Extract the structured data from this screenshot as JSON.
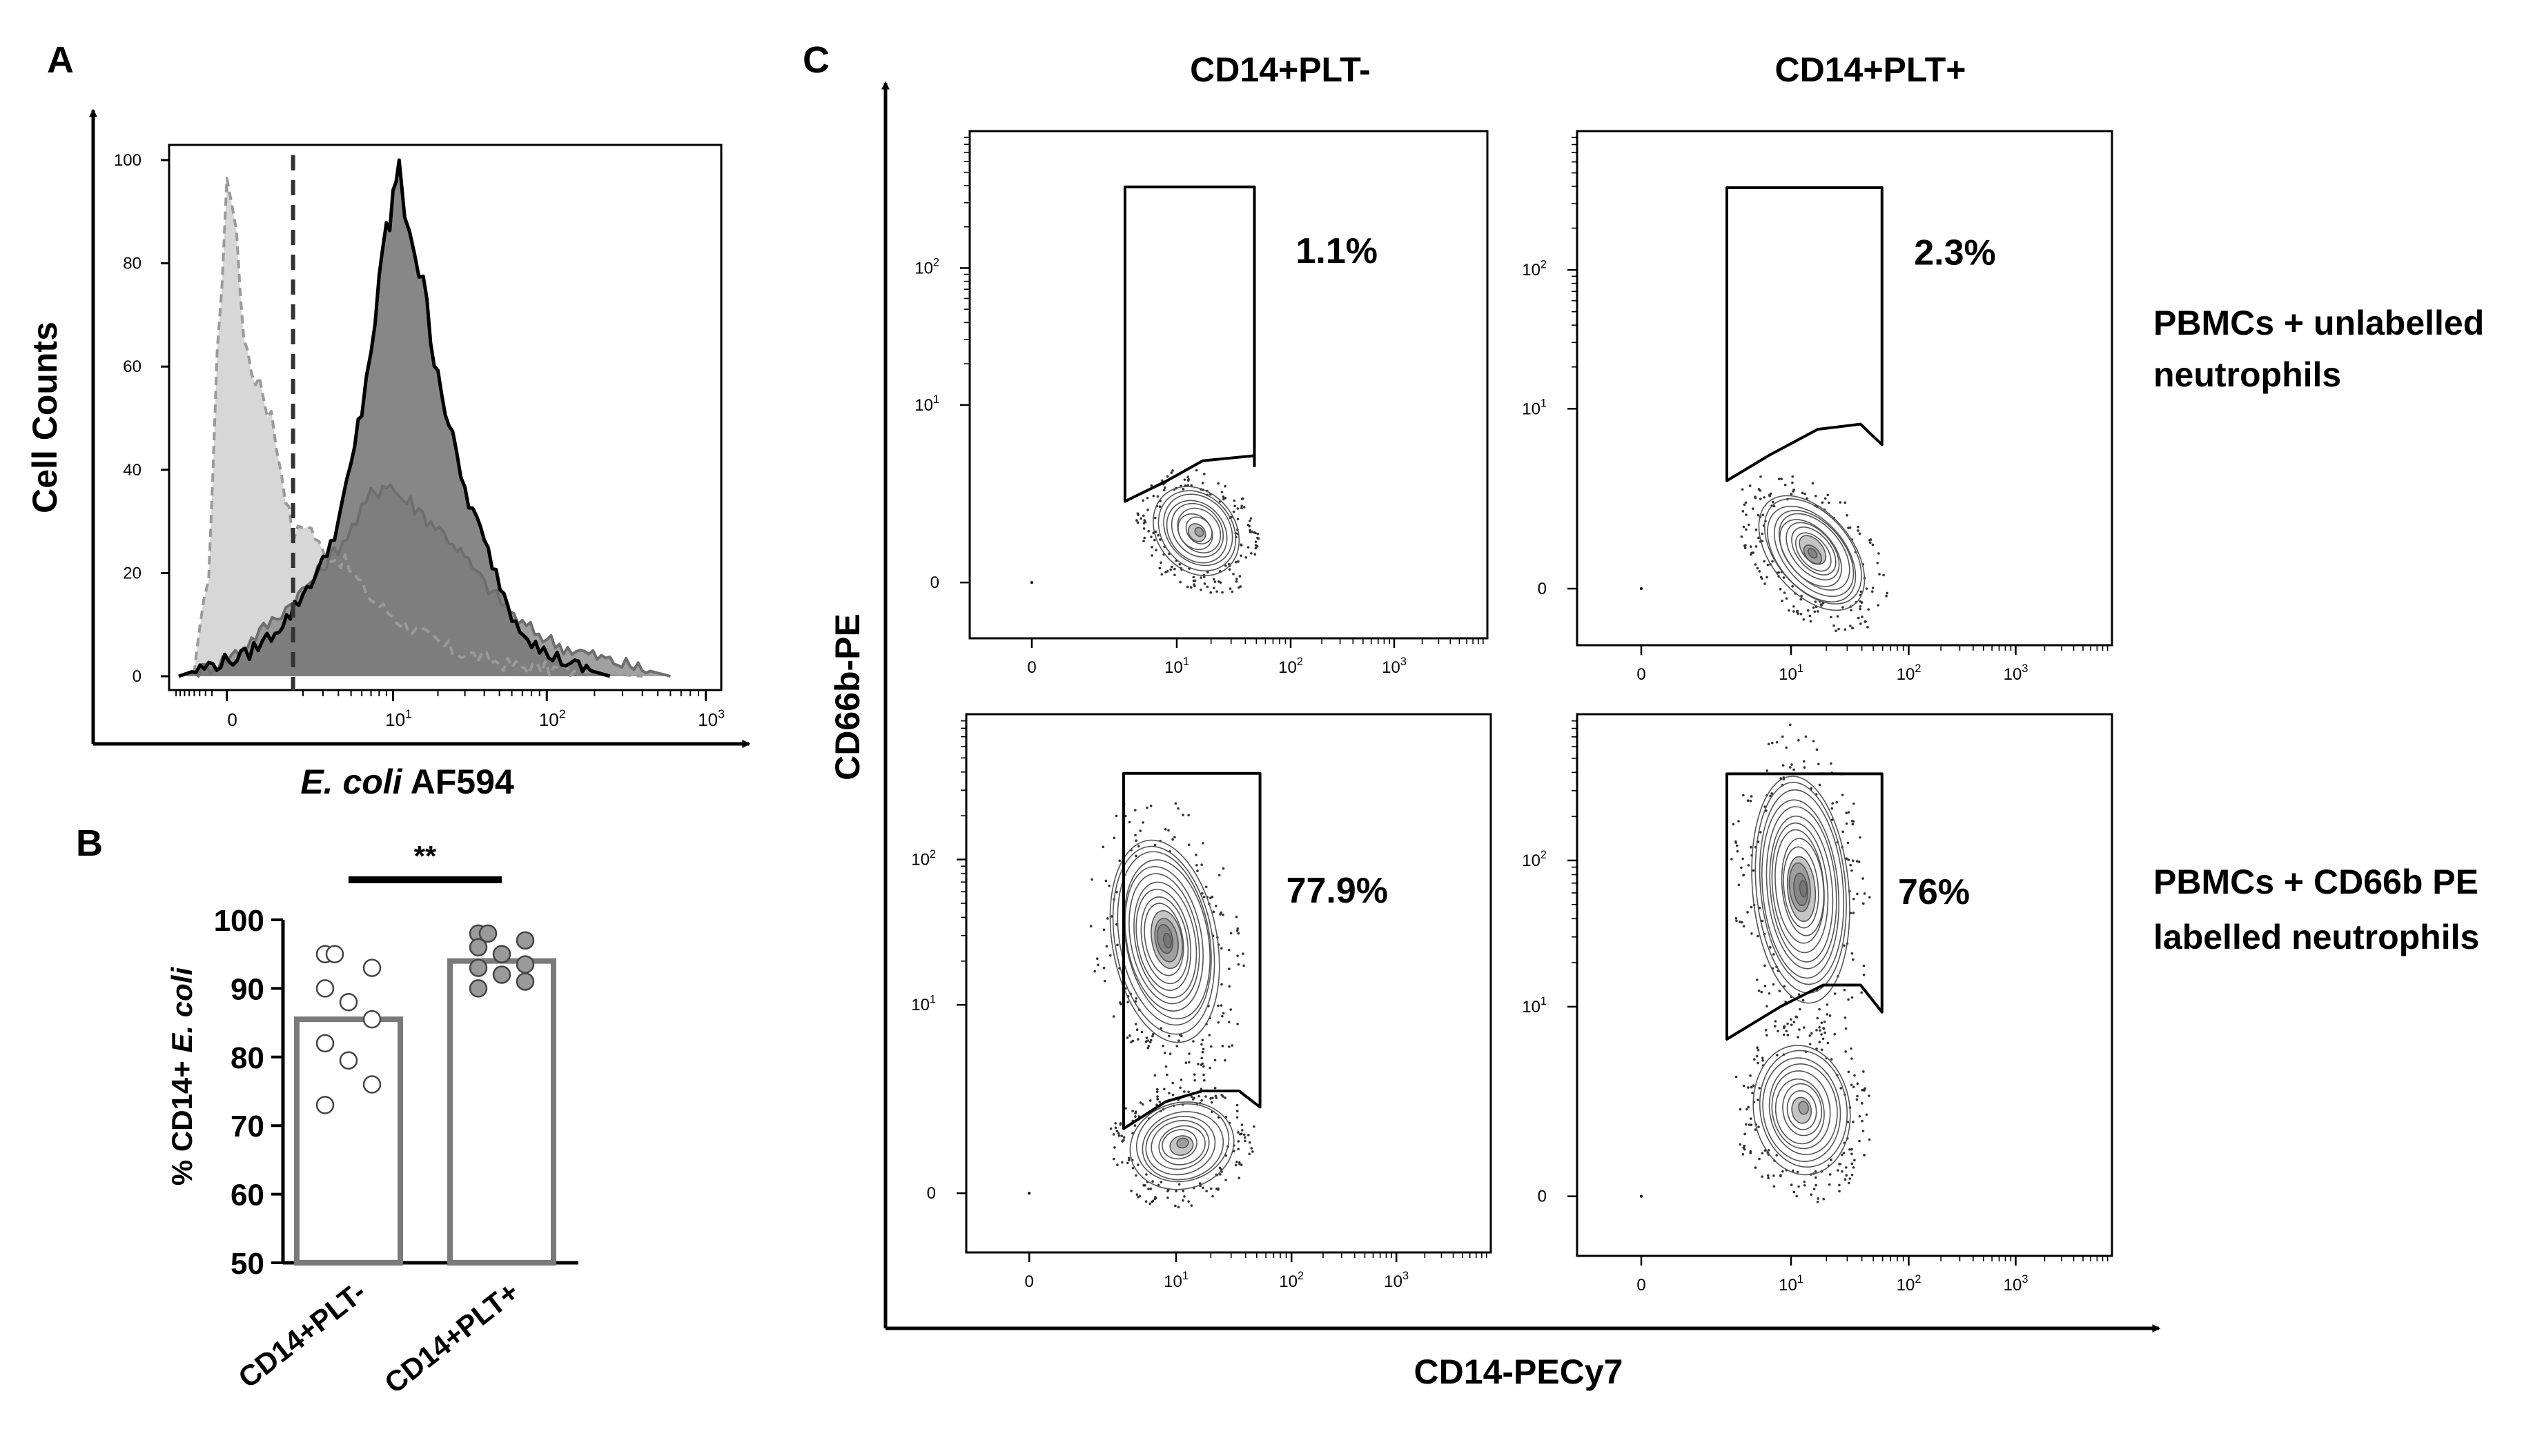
{
  "panels": {
    "A": {
      "letter": "A",
      "ylabel": "Cell Counts",
      "xlabel_italic": "E. coli",
      "xlabel_rest": " AF594"
    },
    "B": {
      "letter": "B",
      "significance": "**"
    },
    "C": {
      "letter": "C",
      "ylabel": "CD66b-PE",
      "xlabel": "CD14-PECy7",
      "col_titles": [
        "CD14+PLT-",
        "CD14+PLT+"
      ],
      "row_labels": [
        [
          "PBMCs + unlabelled",
          "neutrophils"
        ],
        [
          "PBMCs + CD66b PE",
          "labelled neutrophils"
        ]
      ]
    }
  },
  "chart_data": [
    {
      "type": "area",
      "panel": "A",
      "ylabel": "Cell Counts",
      "xlabel": "E. coli AF594",
      "xscale": "biexponential",
      "x_ticks": [
        {
          "value": 0,
          "label": "0"
        },
        {
          "value": 10,
          "label": "10",
          "exp": "1"
        },
        {
          "value": 100,
          "label": "10",
          "exp": "2"
        },
        {
          "value": 1000,
          "label": "10",
          "exp": "3"
        }
      ],
      "y_ticks": [
        0,
        20,
        40,
        60,
        80,
        100
      ],
      "ylim": [
        0,
        100
      ],
      "gate_threshold_x": 1.6,
      "series": [
        {
          "style": "light-gray-dashed",
          "points": [
            [
              -1,
              0
            ],
            [
              -0.6,
              1
            ],
            [
              -0.3,
              20
            ],
            [
              -0.15,
              60
            ],
            [
              0,
              98
            ],
            [
              0.15,
              85
            ],
            [
              0.35,
              60
            ],
            [
              0.6,
              58
            ],
            [
              0.9,
              50
            ],
            [
              1.2,
              40
            ],
            [
              1.6,
              27
            ],
            [
              2.2,
              30
            ],
            [
              3,
              24
            ],
            [
              4.5,
              22
            ],
            [
              7,
              15
            ],
            [
              12,
              10
            ],
            [
              25,
              5
            ],
            [
              60,
              2
            ],
            [
              150,
              1
            ],
            [
              400,
              0
            ]
          ]
        },
        {
          "style": "mid-gray",
          "points": [
            [
              -1,
              0
            ],
            [
              -0.2,
              2
            ],
            [
              0.2,
              5
            ],
            [
              0.8,
              10
            ],
            [
              1.5,
              14
            ],
            [
              2.5,
              19
            ],
            [
              4,
              25
            ],
            [
              5.5,
              30
            ],
            [
              7,
              35
            ],
            [
              9,
              38
            ],
            [
              11,
              35
            ],
            [
              14,
              33
            ],
            [
              18,
              30
            ],
            [
              25,
              26
            ],
            [
              40,
              18
            ],
            [
              70,
              10
            ],
            [
              120,
              6
            ],
            [
              250,
              3
            ],
            [
              600,
              0
            ]
          ]
        },
        {
          "style": "black-outline-dark-fill",
          "points": [
            [
              -1,
              0
            ],
            [
              -0.3,
              2
            ],
            [
              0.3,
              4
            ],
            [
              0.9,
              8
            ],
            [
              1.5,
              12
            ],
            [
              2,
              16
            ],
            [
              3,
              22
            ],
            [
              4,
              30
            ],
            [
              5,
              40
            ],
            [
              6,
              52
            ],
            [
              7,
              64
            ],
            [
              8,
              74
            ],
            [
              9,
              86
            ],
            [
              10,
              92
            ],
            [
              11,
              100
            ],
            [
              12,
              92
            ],
            [
              14,
              84
            ],
            [
              16,
              74
            ],
            [
              20,
              60
            ],
            [
              25,
              45
            ],
            [
              30,
              36
            ],
            [
              40,
              26
            ],
            [
              60,
              12
            ],
            [
              90,
              5
            ],
            [
              150,
              2
            ],
            [
              250,
              0
            ]
          ]
        }
      ]
    },
    {
      "type": "bar",
      "panel": "B",
      "ylabel": "% CD14+ E. coli",
      "ylim": [
        50,
        100
      ],
      "y_ticks": [
        50,
        60,
        70,
        80,
        90,
        100
      ],
      "categories": [
        "CD14+PLT-",
        "CD14+PLT+"
      ],
      "values": [
        85.5,
        94
      ],
      "points": [
        [
          95,
          95,
          93,
          90,
          88,
          85.5,
          82,
          79.5,
          76,
          73
        ],
        [
          98,
          98,
          97,
          96,
          95,
          93.5,
          93,
          92,
          91,
          90
        ]
      ],
      "significance": "**"
    },
    {
      "type": "scatter",
      "panel": "C",
      "xlabel": "CD14-PECy7",
      "ylabel": "CD66b-PE",
      "x_ticks": [
        {
          "label": "0"
        },
        {
          "label": "10",
          "exp": "1"
        },
        {
          "label": "10",
          "exp": "2"
        },
        {
          "label": "10",
          "exp": "3"
        }
      ],
      "y_ticks": [
        {
          "label": "0"
        },
        {
          "label": "10",
          "exp": "1"
        },
        {
          "label": "10",
          "exp": "2"
        }
      ],
      "subplots": [
        {
          "row": 0,
          "col": 0,
          "column": "CD14+PLT-",
          "condition": "PBMCs + unlabelled neutrophils",
          "gate_percent": "1.1%"
        },
        {
          "row": 0,
          "col": 1,
          "column": "CD14+PLT+",
          "condition": "PBMCs + unlabelled neutrophils",
          "gate_percent": "2.3%"
        },
        {
          "row": 1,
          "col": 0,
          "column": "CD14+PLT-",
          "condition": "PBMCs + CD66b PE labelled neutrophils",
          "gate_percent": "77.9%"
        },
        {
          "row": 1,
          "col": 1,
          "column": "CD14+PLT+",
          "condition": "PBMCs + CD66b PE labelled neutrophils",
          "gate_percent": "76%"
        }
      ]
    }
  ]
}
